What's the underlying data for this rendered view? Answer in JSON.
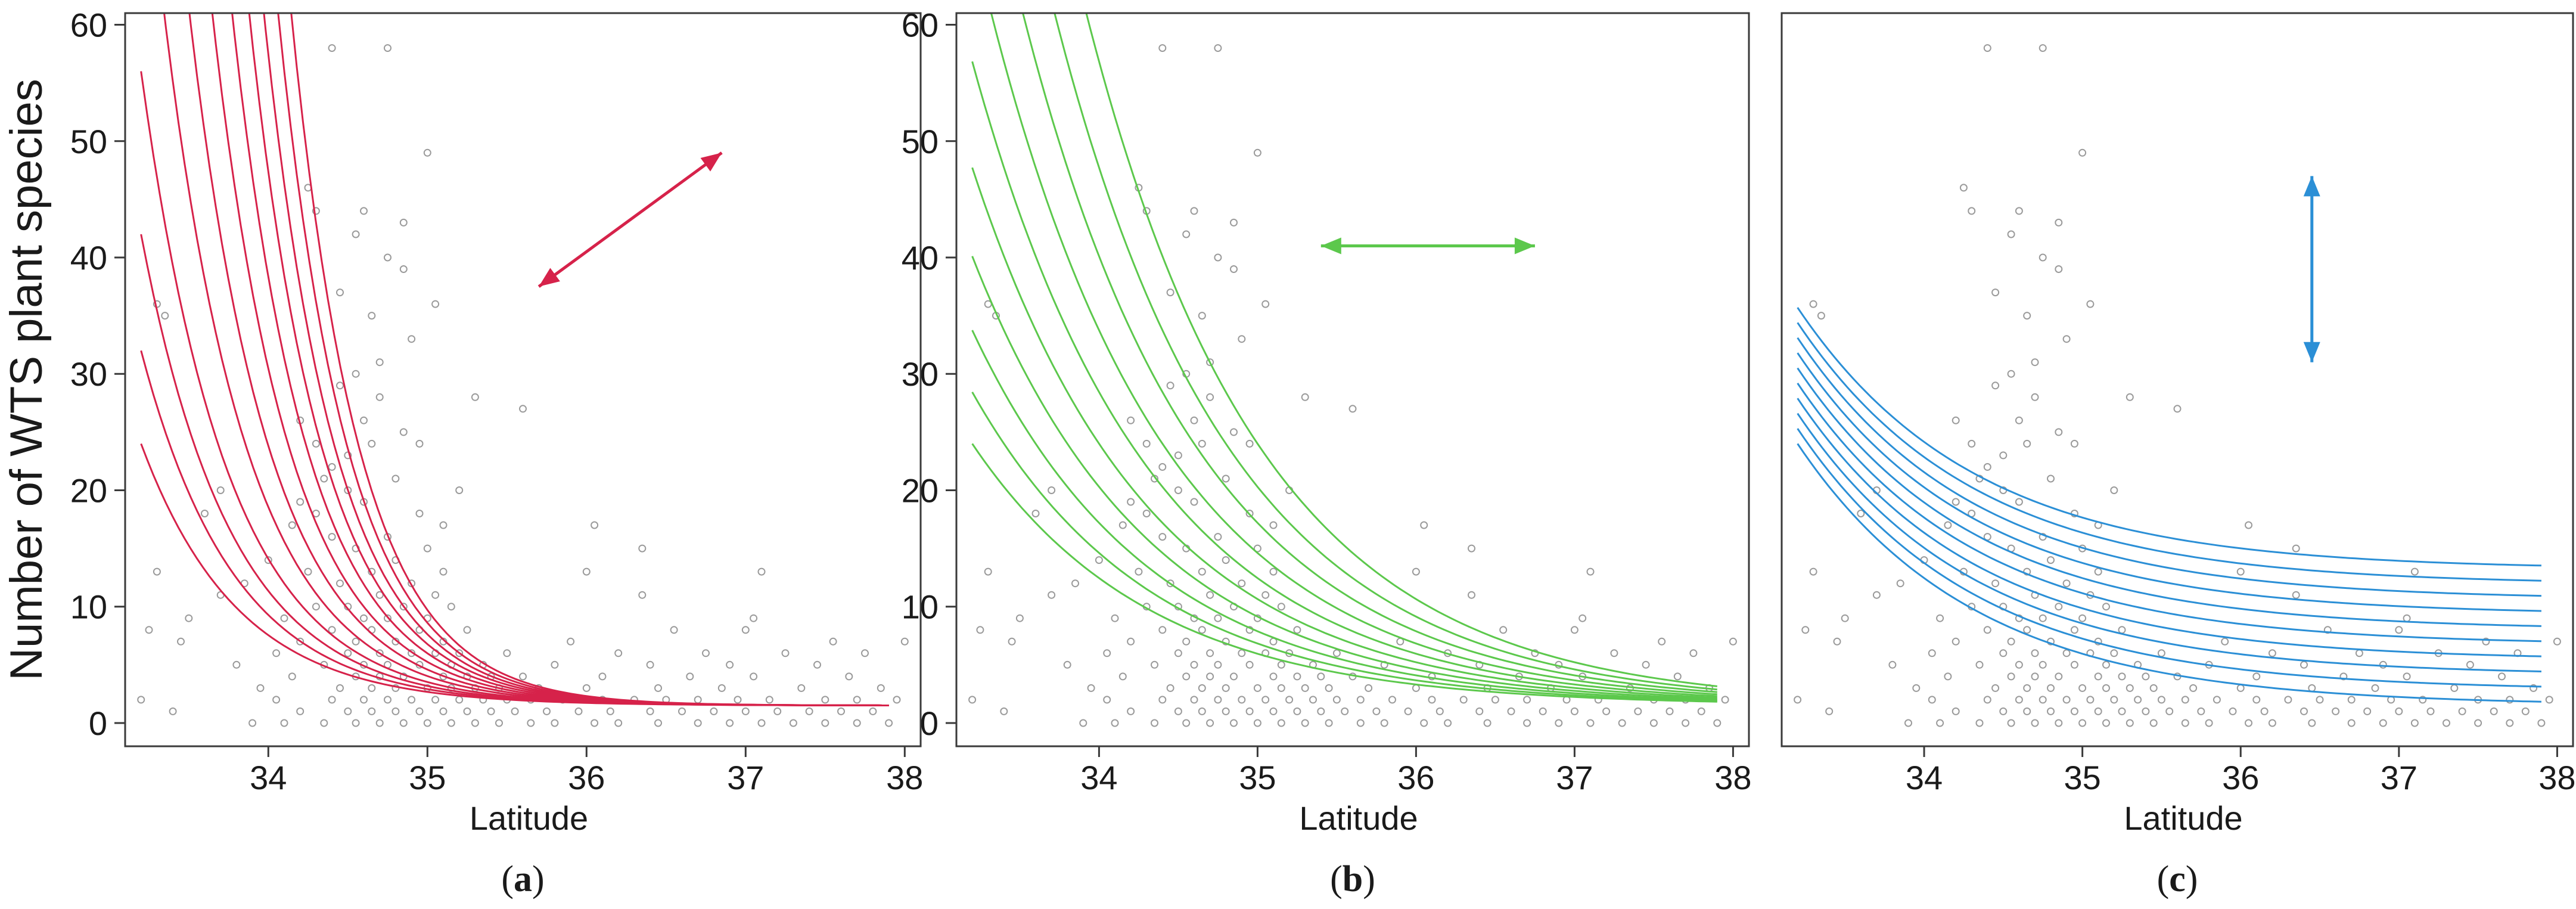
{
  "chart_data": [
    {
      "type": "scatter",
      "panel_label": "a",
      "xlabel": "Latitude",
      "ylabel": "Number of WTS plant species",
      "xlim": [
        33.1,
        38.1
      ],
      "ylim": [
        -2,
        61
      ],
      "x_ticks": [
        34,
        35,
        36,
        37,
        38
      ],
      "y_ticks": [
        0,
        10,
        20,
        30,
        40,
        50,
        60
      ],
      "grid": false,
      "points_color": "#9a9a9a",
      "curve_color": "#d6224a",
      "curve_family": "lines converge at high latitude, fanning upward at low latitude",
      "curves_at_lat_33_2": [
        24,
        32,
        42,
        56,
        80,
        110,
        150,
        200,
        260,
        330,
        420,
        530
      ],
      "curves_at_lat_37_9": 1.5,
      "arrow": {
        "direction": "diagonal",
        "from": [
          35.7,
          37.5
        ],
        "to": [
          36.85,
          49
        ]
      }
    },
    {
      "type": "scatter",
      "panel_label": "b",
      "xlabel": "Latitude",
      "ylabel": "",
      "xlim": [
        33.1,
        38.1
      ],
      "ylim": [
        -2,
        61
      ],
      "x_ticks": [
        34,
        35,
        36,
        37,
        38
      ],
      "y_ticks": [
        0,
        10,
        20,
        30,
        40,
        50,
        60
      ],
      "grid": false,
      "points_color": "#9a9a9a",
      "curve_color": "#5cc84c",
      "curve_family": "identical curves shifted horizontally",
      "curve_shifts_lat": [
        0,
        0.2,
        0.4,
        0.6,
        0.8,
        1.0,
        1.2,
        1.4,
        1.6,
        1.8
      ],
      "arrow": {
        "direction": "horizontal",
        "from": [
          35.4,
          41
        ],
        "to": [
          36.75,
          41
        ]
      }
    },
    {
      "type": "scatter",
      "panel_label": "c",
      "xlabel": "Latitude",
      "ylabel": "",
      "xlim": [
        33.1,
        38.1
      ],
      "ylim": [
        -2,
        61
      ],
      "x_ticks": [
        34,
        35,
        36,
        37,
        38
      ],
      "y_ticks": [],
      "grid": false,
      "points_color": "#9a9a9a",
      "curve_color": "#2b8fd6",
      "curve_family": "identical curves shifted vertically",
      "curve_shifts_y": [
        0,
        1.3,
        2.6,
        3.9,
        5.2,
        6.5,
        7.8,
        9.1,
        10.4,
        11.7
      ],
      "arrow": {
        "direction": "vertical",
        "from": [
          36.45,
          31
        ],
        "to": [
          36.45,
          47
        ]
      }
    }
  ],
  "scatter_points": [
    [
      33.2,
      2
    ],
    [
      33.25,
      8
    ],
    [
      33.3,
      13
    ],
    [
      33.3,
      36
    ],
    [
      33.35,
      35
    ],
    [
      33.4,
      1
    ],
    [
      33.45,
      7
    ],
    [
      33.5,
      9
    ],
    [
      33.6,
      18
    ],
    [
      33.7,
      11
    ],
    [
      33.7,
      20
    ],
    [
      33.8,
      5
    ],
    [
      33.85,
      12
    ],
    [
      33.9,
      0
    ],
    [
      33.95,
      3
    ],
    [
      34.0,
      14
    ],
    [
      34.05,
      2
    ],
    [
      34.05,
      6
    ],
    [
      34.1,
      0
    ],
    [
      34.1,
      9
    ],
    [
      34.15,
      4
    ],
    [
      34.15,
      17
    ],
    [
      34.2,
      1
    ],
    [
      34.2,
      7
    ],
    [
      34.2,
      26
    ],
    [
      34.25,
      13
    ],
    [
      34.25,
      46
    ],
    [
      34.3,
      10
    ],
    [
      34.3,
      44
    ],
    [
      34.35,
      0
    ],
    [
      34.35,
      5
    ],
    [
      34.35,
      21
    ],
    [
      34.4,
      2
    ],
    [
      34.4,
      8
    ],
    [
      34.4,
      16
    ],
    [
      34.4,
      58
    ],
    [
      34.45,
      3
    ],
    [
      34.45,
      12
    ],
    [
      34.45,
      29
    ],
    [
      34.5,
      1
    ],
    [
      34.5,
      6
    ],
    [
      34.5,
      10
    ],
    [
      34.5,
      20
    ],
    [
      34.55,
      0
    ],
    [
      34.55,
      4
    ],
    [
      34.55,
      7
    ],
    [
      34.55,
      15
    ],
    [
      34.55,
      42
    ],
    [
      34.6,
      2
    ],
    [
      34.6,
      5
    ],
    [
      34.6,
      9
    ],
    [
      34.6,
      19
    ],
    [
      34.6,
      44
    ],
    [
      34.65,
      1
    ],
    [
      34.65,
      3
    ],
    [
      34.65,
      8
    ],
    [
      34.65,
      13
    ],
    [
      34.65,
      24
    ],
    [
      34.7,
      0
    ],
    [
      34.7,
      4
    ],
    [
      34.7,
      6
    ],
    [
      34.7,
      11
    ],
    [
      34.7,
      28
    ],
    [
      34.75,
      2
    ],
    [
      34.75,
      5
    ],
    [
      34.75,
      9
    ],
    [
      34.75,
      16
    ],
    [
      34.75,
      58
    ],
    [
      34.8,
      1
    ],
    [
      34.8,
      3
    ],
    [
      34.8,
      7
    ],
    [
      34.8,
      14
    ],
    [
      34.8,
      21
    ],
    [
      34.85,
      0
    ],
    [
      34.85,
      4
    ],
    [
      34.85,
      10
    ],
    [
      34.85,
      39
    ],
    [
      34.9,
      2
    ],
    [
      34.9,
      6
    ],
    [
      34.9,
      12
    ],
    [
      34.9,
      33
    ],
    [
      34.95,
      1
    ],
    [
      34.95,
      5
    ],
    [
      34.95,
      8
    ],
    [
      34.95,
      18
    ],
    [
      35.0,
      0
    ],
    [
      35.0,
      3
    ],
    [
      35.0,
      9
    ],
    [
      35.0,
      15
    ],
    [
      35.0,
      49
    ],
    [
      35.05,
      2
    ],
    [
      35.05,
      6
    ],
    [
      35.05,
      11
    ],
    [
      35.05,
      36
    ],
    [
      35.1,
      1
    ],
    [
      35.1,
      4
    ],
    [
      35.1,
      7
    ],
    [
      35.1,
      13
    ],
    [
      35.15,
      0
    ],
    [
      35.15,
      3
    ],
    [
      35.15,
      5
    ],
    [
      35.15,
      10
    ],
    [
      35.2,
      2
    ],
    [
      35.2,
      6
    ],
    [
      35.2,
      20
    ],
    [
      35.25,
      1
    ],
    [
      35.25,
      4
    ],
    [
      35.25,
      8
    ],
    [
      35.3,
      0
    ],
    [
      35.3,
      3
    ],
    [
      35.3,
      28
    ],
    [
      35.35,
      2
    ],
    [
      35.35,
      5
    ],
    [
      35.4,
      1
    ],
    [
      35.4,
      4
    ],
    [
      35.45,
      0
    ],
    [
      35.45,
      3
    ],
    [
      35.5,
      2
    ],
    [
      35.5,
      6
    ],
    [
      35.55,
      1
    ],
    [
      35.6,
      4
    ],
    [
      35.6,
      27
    ],
    [
      35.65,
      0
    ],
    [
      35.65,
      2
    ],
    [
      35.7,
      3
    ],
    [
      35.75,
      1
    ],
    [
      35.8,
      0
    ],
    [
      35.8,
      5
    ],
    [
      35.85,
      2
    ],
    [
      35.9,
      7
    ],
    [
      35.95,
      1
    ],
    [
      36.0,
      3
    ],
    [
      36.0,
      13
    ],
    [
      36.05,
      0
    ],
    [
      36.05,
      17
    ],
    [
      36.1,
      2
    ],
    [
      36.1,
      4
    ],
    [
      36.15,
      1
    ],
    [
      36.2,
      0
    ],
    [
      36.2,
      6
    ],
    [
      36.3,
      2
    ],
    [
      36.35,
      11
    ],
    [
      36.35,
      15
    ],
    [
      36.4,
      1
    ],
    [
      36.4,
      5
    ],
    [
      36.45,
      0
    ],
    [
      36.45,
      3
    ],
    [
      36.5,
      2
    ],
    [
      36.55,
      8
    ],
    [
      36.6,
      1
    ],
    [
      36.65,
      4
    ],
    [
      36.7,
      0
    ],
    [
      36.7,
      2
    ],
    [
      36.75,
      6
    ],
    [
      36.8,
      1
    ],
    [
      36.85,
      3
    ],
    [
      36.9,
      0
    ],
    [
      36.9,
      5
    ],
    [
      36.95,
      2
    ],
    [
      37.0,
      8
    ],
    [
      37.0,
      1
    ],
    [
      37.05,
      4
    ],
    [
      37.05,
      9
    ],
    [
      37.1,
      0
    ],
    [
      37.1,
      13
    ],
    [
      37.15,
      2
    ],
    [
      37.2,
      1
    ],
    [
      37.25,
      6
    ],
    [
      37.3,
      0
    ],
    [
      37.35,
      3
    ],
    [
      37.4,
      1
    ],
    [
      37.45,
      5
    ],
    [
      37.5,
      0
    ],
    [
      37.5,
      2
    ],
    [
      37.55,
      7
    ],
    [
      37.6,
      1
    ],
    [
      37.65,
      4
    ],
    [
      37.7,
      0
    ],
    [
      37.7,
      2
    ],
    [
      37.75,
      6
    ],
    [
      37.8,
      1
    ],
    [
      37.85,
      3
    ],
    [
      37.9,
      0
    ],
    [
      37.95,
      2
    ],
    [
      38.0,
      7
    ],
    [
      34.3,
      18
    ],
    [
      34.5,
      23
    ],
    [
      34.6,
      26
    ],
    [
      34.7,
      31
    ],
    [
      34.85,
      25
    ],
    [
      34.95,
      24
    ],
    [
      35.1,
      17
    ],
    [
      34.4,
      22
    ],
    [
      34.55,
      30
    ],
    [
      34.65,
      35
    ],
    [
      34.75,
      40
    ],
    [
      34.85,
      43
    ],
    [
      34.2,
      19
    ],
    [
      34.3,
      24
    ],
    [
      34.45,
      37
    ]
  ]
}
